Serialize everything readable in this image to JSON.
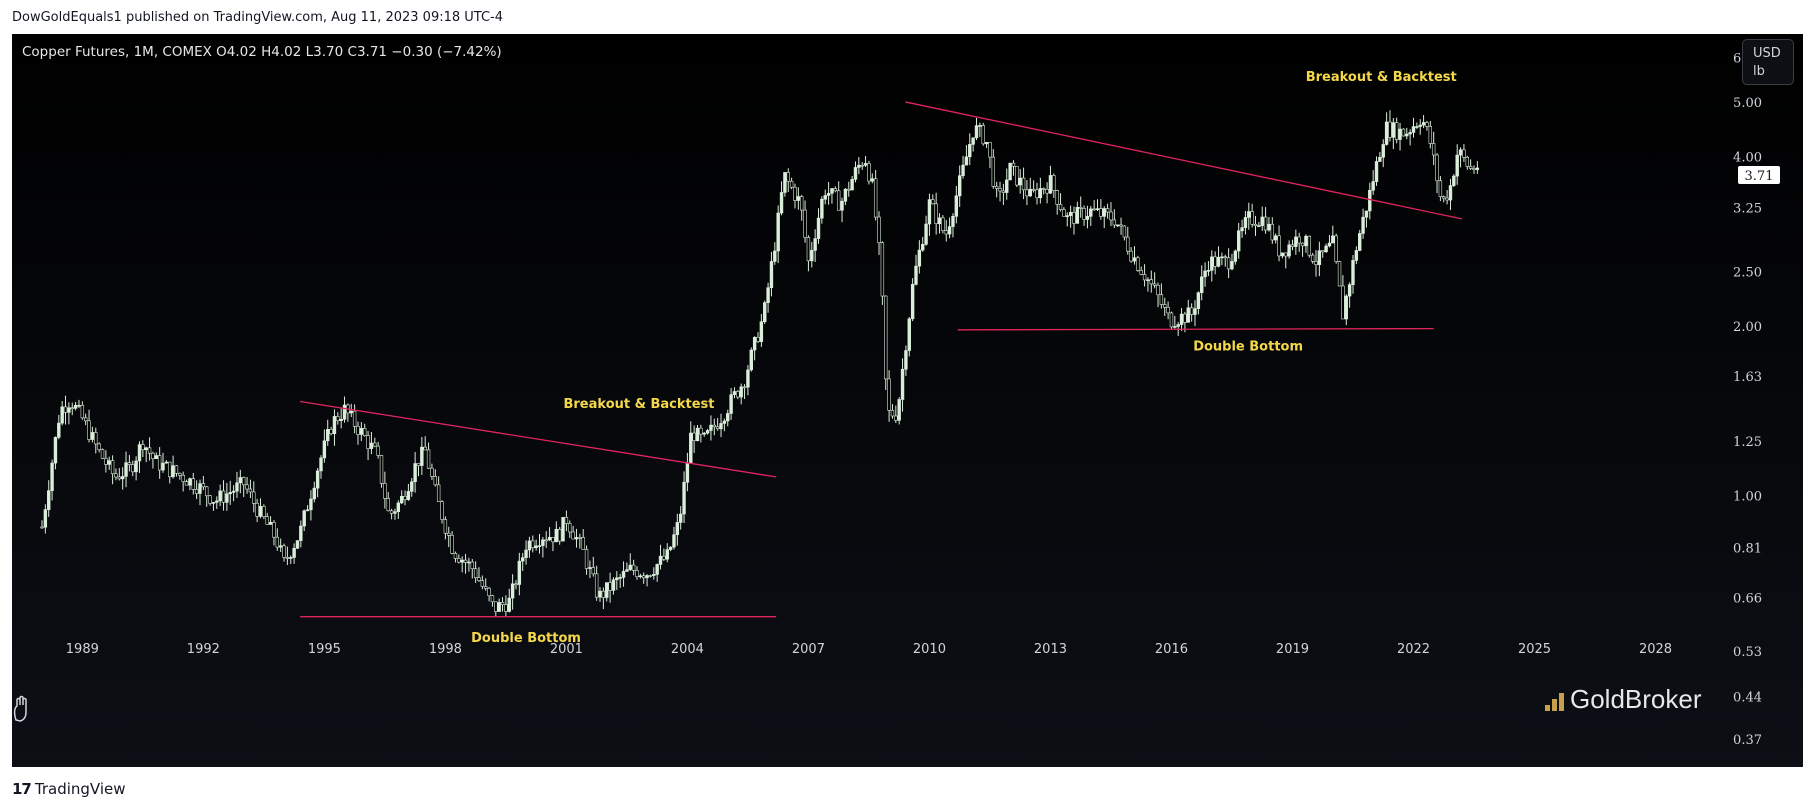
{
  "header": {
    "published": "DowGoldEquals1 published on TradingView.com, Aug 11, 2023 09:18 UTC-4"
  },
  "symbol": {
    "info": "Copper Futures, 1M, COMEX  O4.02  H4.02  L3.70  C3.71  −0.30 (−7.42%)"
  },
  "currency": {
    "line1": "USD",
    "line2": "lb"
  },
  "last_price": "3.71",
  "footer": {
    "brand": "TradingView"
  },
  "watermark": {
    "brand": "GoldBroker"
  },
  "colors": {
    "background": "#000000",
    "candle": "#dbeedc",
    "trendline": "#e0245e",
    "annotation": "#f5d84a",
    "axis_text": "#d1d4dc"
  },
  "chart_data": {
    "type": "candlestick",
    "title": "Copper Futures, 1M, COMEX",
    "scale": "log",
    "xlim": [
      1988.0,
      2029.4
    ],
    "ylim": [
      0.33,
      6.6
    ],
    "x_ticks": [
      1989,
      1992,
      1995,
      1998,
      2001,
      2004,
      2007,
      2010,
      2013,
      2016,
      2019,
      2022,
      2025,
      2028
    ],
    "y_ticks": [
      "6.00",
      "5.00",
      "4.00",
      "3.25",
      "2.50",
      "2.00",
      "1.63",
      "1.25",
      "1.00",
      "0.81",
      "0.66",
      "0.53",
      "0.44",
      "0.37"
    ],
    "price_path": [
      [
        1988.0,
        0.88
      ],
      [
        1988.25,
        1.15
      ],
      [
        1988.45,
        1.42
      ],
      [
        1988.7,
        1.48
      ],
      [
        1989.0,
        1.37
      ],
      [
        1989.4,
        1.2
      ],
      [
        1989.8,
        1.08
      ],
      [
        1990.2,
        1.12
      ],
      [
        1990.5,
        1.25
      ],
      [
        1990.8,
        1.15
      ],
      [
        1991.3,
        1.1
      ],
      [
        1991.8,
        1.05
      ],
      [
        1992.3,
        0.98
      ],
      [
        1992.7,
        1.02
      ],
      [
        1993.0,
        1.05
      ],
      [
        1993.4,
        0.93
      ],
      [
        1993.8,
        0.84
      ],
      [
        1994.0,
        0.76
      ],
      [
        1994.4,
        0.86
      ],
      [
        1994.8,
        1.1
      ],
      [
        1995.2,
        1.35
      ],
      [
        1995.5,
        1.42
      ],
      [
        1995.9,
        1.3
      ],
      [
        1996.3,
        1.18
      ],
      [
        1996.6,
        0.92
      ],
      [
        1996.9,
        0.98
      ],
      [
        1997.3,
        1.15
      ],
      [
        1997.5,
        1.2
      ],
      [
        1997.8,
        0.98
      ],
      [
        1998.2,
        0.8
      ],
      [
        1998.7,
        0.74
      ],
      [
        1999.2,
        0.63
      ],
      [
        1999.6,
        0.65
      ],
      [
        2000.0,
        0.82
      ],
      [
        2000.4,
        0.85
      ],
      [
        2000.8,
        0.85
      ],
      [
        2001.0,
        0.91
      ],
      [
        2001.4,
        0.8
      ],
      [
        2001.8,
        0.66
      ],
      [
        2002.2,
        0.7
      ],
      [
        2002.6,
        0.74
      ],
      [
        2003.0,
        0.73
      ],
      [
        2003.5,
        0.78
      ],
      [
        2003.8,
        0.9
      ],
      [
        2004.1,
        1.3
      ],
      [
        2004.4,
        1.25
      ],
      [
        2004.9,
        1.4
      ],
      [
        2005.4,
        1.6
      ],
      [
        2005.9,
        2.1
      ],
      [
        2006.2,
        2.9
      ],
      [
        2006.4,
        3.7
      ],
      [
        2006.8,
        3.3
      ],
      [
        2007.0,
        2.6
      ],
      [
        2007.4,
        3.5
      ],
      [
        2007.8,
        3.3
      ],
      [
        2008.2,
        3.8
      ],
      [
        2008.4,
        4.0
      ],
      [
        2008.6,
        3.5
      ],
      [
        2008.8,
        2.5
      ],
      [
        2008.95,
        1.4
      ],
      [
        2009.2,
        1.4
      ],
      [
        2009.6,
        2.4
      ],
      [
        2010.0,
        3.3
      ],
      [
        2010.4,
        2.9
      ],
      [
        2010.8,
        3.7
      ],
      [
        2011.1,
        4.5
      ],
      [
        2011.4,
        4.3
      ],
      [
        2011.7,
        3.3
      ],
      [
        2012.0,
        3.8
      ],
      [
        2012.5,
        3.4
      ],
      [
        2013.0,
        3.6
      ],
      [
        2013.4,
        3.1
      ],
      [
        2014.0,
        3.2
      ],
      [
        2014.6,
        3.1
      ],
      [
        2015.0,
        2.7
      ],
      [
        2015.6,
        2.3
      ],
      [
        2015.95,
        2.05
      ],
      [
        2016.5,
        2.1
      ],
      [
        2016.9,
        2.6
      ],
      [
        2017.4,
        2.6
      ],
      [
        2017.9,
        3.1
      ],
      [
        2018.3,
        3.1
      ],
      [
        2018.7,
        2.7
      ],
      [
        2019.2,
        2.9
      ],
      [
        2019.6,
        2.6
      ],
      [
        2020.0,
        2.8
      ],
      [
        2020.25,
        2.1
      ],
      [
        2020.6,
        2.8
      ],
      [
        2020.9,
        3.4
      ],
      [
        2021.3,
        4.5
      ],
      [
        2021.8,
        4.4
      ],
      [
        2022.2,
        4.7
      ],
      [
        2022.4,
        4.3
      ],
      [
        2022.7,
        3.3
      ],
      [
        2022.9,
        3.5
      ],
      [
        2023.1,
        4.1
      ],
      [
        2023.4,
        3.8
      ],
      [
        2023.6,
        3.85
      ]
    ],
    "trendlines": [
      {
        "name": "resistance-1",
        "x": [
          1994.4,
          2006.2
        ],
        "y": [
          1.47,
          1.08
        ]
      },
      {
        "name": "support-1",
        "x": [
          1994.4,
          2006.2
        ],
        "y": [
          0.61,
          0.61
        ]
      },
      {
        "name": "resistance-2",
        "x": [
          2009.4,
          2023.2
        ],
        "y": [
          5.0,
          3.1
        ]
      },
      {
        "name": "support-2",
        "x": [
          2010.7,
          2022.5
        ],
        "y": [
          1.97,
          1.98
        ]
      }
    ],
    "annotations": [
      {
        "text": "Breakout & Backtest",
        "x": 2002.8,
        "y": 1.43
      },
      {
        "text": "Double Bottom",
        "x": 2000.0,
        "y": 0.55
      },
      {
        "text": "Breakout & Backtest",
        "x": 2021.2,
        "y": 5.45
      },
      {
        "text": "Double Bottom",
        "x": 2017.9,
        "y": 1.81
      }
    ]
  }
}
